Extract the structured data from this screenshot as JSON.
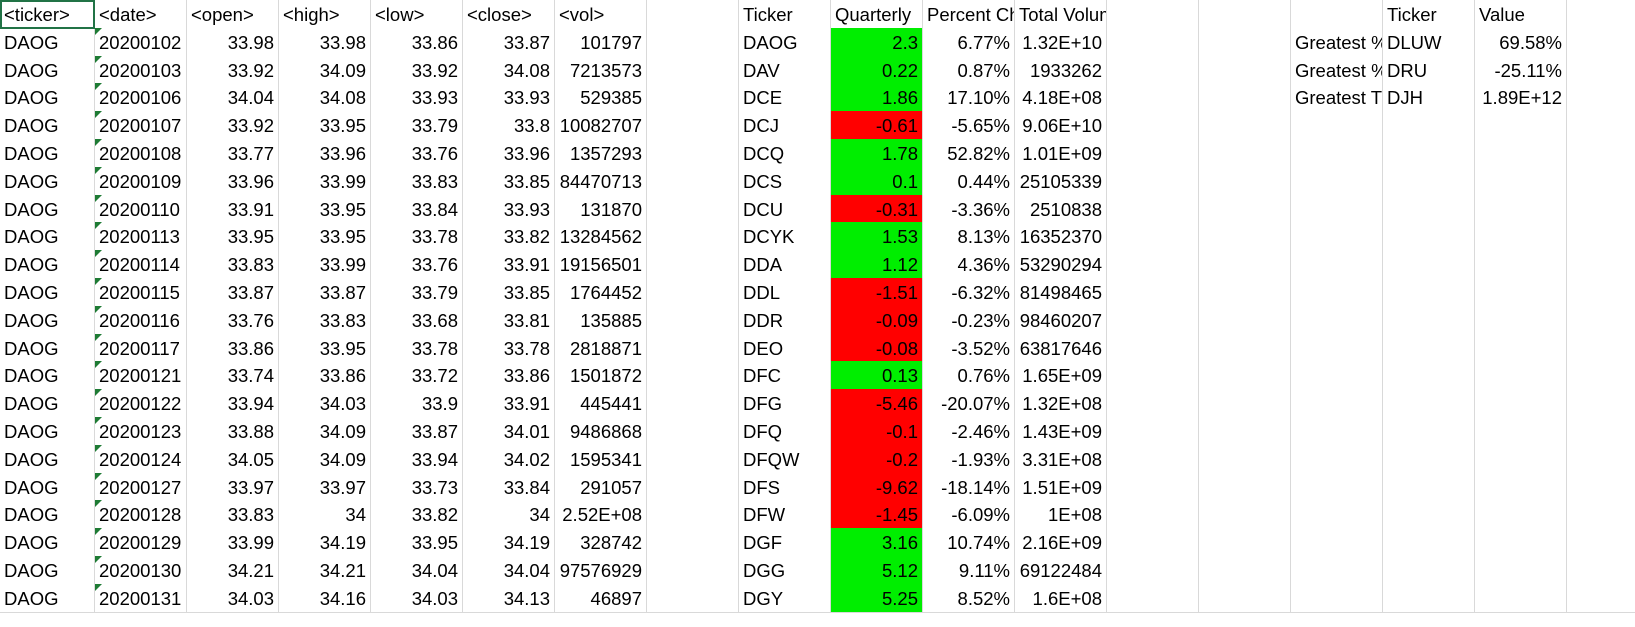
{
  "colors": {
    "positive": "#00ee00",
    "negative": "#ff0000",
    "gridline": "#d9d9d9",
    "selection": "#217346"
  },
  "rows": [
    {
      "ticker": "<ticker>",
      "date": "<date>",
      "open": "<open>",
      "high": "<high>",
      "low": "<low>",
      "close": "<close>",
      "vol": "<vol>",
      "sum_ticker": "Ticker",
      "change": "Quarterly",
      "pct": "Percent Ch",
      "total": "Total Volume",
      "g_label": "",
      "g_ticker": "Ticker",
      "g_value": "Value"
    },
    {
      "ticker": "DAOG",
      "date": "20200102",
      "open": "33.98",
      "high": "33.98",
      "low": "33.86",
      "close": "33.87",
      "vol": "101797",
      "sum_ticker": "DAOG",
      "change": "2.3",
      "pct": "6.77%",
      "total": "1.32E+10",
      "sign": "pos",
      "g_label": "Greatest %",
      "g_ticker": "DLUW",
      "g_value": "69.58%"
    },
    {
      "ticker": "DAOG",
      "date": "20200103",
      "open": "33.92",
      "high": "34.09",
      "low": "33.92",
      "close": "34.08",
      "vol": "7213573",
      "sum_ticker": "DAV",
      "change": "0.22",
      "pct": "0.87%",
      "total": "1933262",
      "sign": "pos",
      "g_label": "Greatest %",
      "g_ticker": "DRU",
      "g_value": "-25.11%"
    },
    {
      "ticker": "DAOG",
      "date": "20200106",
      "open": "34.04",
      "high": "34.08",
      "low": "33.93",
      "close": "33.93",
      "vol": "529385",
      "sum_ticker": "DCE",
      "change": "1.86",
      "pct": "17.10%",
      "total": "4.18E+08",
      "sign": "pos",
      "g_label": "Greatest T",
      "g_ticker": "DJH",
      "g_value": "1.89E+12"
    },
    {
      "ticker": "DAOG",
      "date": "20200107",
      "open": "33.92",
      "high": "33.95",
      "low": "33.79",
      "close": "33.8",
      "vol": "10082707",
      "sum_ticker": "DCJ",
      "change": "-0.61",
      "pct": "-5.65%",
      "total": "9.06E+10",
      "sign": "neg"
    },
    {
      "ticker": "DAOG",
      "date": "20200108",
      "open": "33.77",
      "high": "33.96",
      "low": "33.76",
      "close": "33.96",
      "vol": "1357293",
      "sum_ticker": "DCQ",
      "change": "1.78",
      "pct": "52.82%",
      "total": "1.01E+09",
      "sign": "pos"
    },
    {
      "ticker": "DAOG",
      "date": "20200109",
      "open": "33.96",
      "high": "33.99",
      "low": "33.83",
      "close": "33.85",
      "vol": "84470713",
      "sum_ticker": "DCS",
      "change": "0.1",
      "pct": "0.44%",
      "total": "25105339",
      "sign": "pos"
    },
    {
      "ticker": "DAOG",
      "date": "20200110",
      "open": "33.91",
      "high": "33.95",
      "low": "33.84",
      "close": "33.93",
      "vol": "131870",
      "sum_ticker": "DCU",
      "change": "-0.31",
      "pct": "-3.36%",
      "total": "2510838",
      "sign": "neg"
    },
    {
      "ticker": "DAOG",
      "date": "20200113",
      "open": "33.95",
      "high": "33.95",
      "low": "33.78",
      "close": "33.82",
      "vol": "13284562",
      "sum_ticker": "DCYK",
      "change": "1.53",
      "pct": "8.13%",
      "total": "16352370",
      "sign": "pos"
    },
    {
      "ticker": "DAOG",
      "date": "20200114",
      "open": "33.83",
      "high": "33.99",
      "low": "33.76",
      "close": "33.91",
      "vol": "19156501",
      "sum_ticker": "DDA",
      "change": "1.12",
      "pct": "4.36%",
      "total": "53290294",
      "sign": "pos"
    },
    {
      "ticker": "DAOG",
      "date": "20200115",
      "open": "33.87",
      "high": "33.87",
      "low": "33.79",
      "close": "33.85",
      "vol": "1764452",
      "sum_ticker": "DDL",
      "change": "-1.51",
      "pct": "-6.32%",
      "total": "81498465",
      "sign": "neg"
    },
    {
      "ticker": "DAOG",
      "date": "20200116",
      "open": "33.76",
      "high": "33.83",
      "low": "33.68",
      "close": "33.81",
      "vol": "135885",
      "sum_ticker": "DDR",
      "change": "-0.09",
      "pct": "-0.23%",
      "total": "98460207",
      "sign": "neg"
    },
    {
      "ticker": "DAOG",
      "date": "20200117",
      "open": "33.86",
      "high": "33.95",
      "low": "33.78",
      "close": "33.78",
      "vol": "2818871",
      "sum_ticker": "DEO",
      "change": "-0.08",
      "pct": "-3.52%",
      "total": "63817646",
      "sign": "neg"
    },
    {
      "ticker": "DAOG",
      "date": "20200121",
      "open": "33.74",
      "high": "33.86",
      "low": "33.72",
      "close": "33.86",
      "vol": "1501872",
      "sum_ticker": "DFC",
      "change": "0.13",
      "pct": "0.76%",
      "total": "1.65E+09",
      "sign": "pos"
    },
    {
      "ticker": "DAOG",
      "date": "20200122",
      "open": "33.94",
      "high": "34.03",
      "low": "33.9",
      "close": "33.91",
      "vol": "445441",
      "sum_ticker": "DFG",
      "change": "-5.46",
      "pct": "-20.07%",
      "total": "1.32E+08",
      "sign": "neg"
    },
    {
      "ticker": "DAOG",
      "date": "20200123",
      "open": "33.88",
      "high": "34.09",
      "low": "33.87",
      "close": "34.01",
      "vol": "9486868",
      "sum_ticker": "DFQ",
      "change": "-0.1",
      "pct": "-2.46%",
      "total": "1.43E+09",
      "sign": "neg"
    },
    {
      "ticker": "DAOG",
      "date": "20200124",
      "open": "34.05",
      "high": "34.09",
      "low": "33.94",
      "close": "34.02",
      "vol": "1595341",
      "sum_ticker": "DFQW",
      "change": "-0.2",
      "pct": "-1.93%",
      "total": "3.31E+08",
      "sign": "neg"
    },
    {
      "ticker": "DAOG",
      "date": "20200127",
      "open": "33.97",
      "high": "33.97",
      "low": "33.73",
      "close": "33.84",
      "vol": "291057",
      "sum_ticker": "DFS",
      "change": "-9.62",
      "pct": "-18.14%",
      "total": "1.51E+09",
      "sign": "neg"
    },
    {
      "ticker": "DAOG",
      "date": "20200128",
      "open": "33.83",
      "high": "34",
      "low": "33.82",
      "close": "34",
      "vol": "2.52E+08",
      "sum_ticker": "DFW",
      "change": "-1.45",
      "pct": "-6.09%",
      "total": "1E+08",
      "sign": "neg"
    },
    {
      "ticker": "DAOG",
      "date": "20200129",
      "open": "33.99",
      "high": "34.19",
      "low": "33.95",
      "close": "34.19",
      "vol": "328742",
      "sum_ticker": "DGF",
      "change": "3.16",
      "pct": "10.74%",
      "total": "2.16E+09",
      "sign": "pos"
    },
    {
      "ticker": "DAOG",
      "date": "20200130",
      "open": "34.21",
      "high": "34.21",
      "low": "34.04",
      "close": "34.04",
      "vol": "97576929",
      "sum_ticker": "DGG",
      "change": "5.12",
      "pct": "9.11%",
      "total": "69122484",
      "sign": "pos"
    },
    {
      "ticker": "DAOG",
      "date": "20200131",
      "open": "34.03",
      "high": "34.16",
      "low": "34.03",
      "close": "34.13",
      "vol": "46897",
      "sum_ticker": "DGY",
      "change": "5.25",
      "pct": "8.52%",
      "total": "1.6E+08",
      "sign": "pos"
    }
  ]
}
